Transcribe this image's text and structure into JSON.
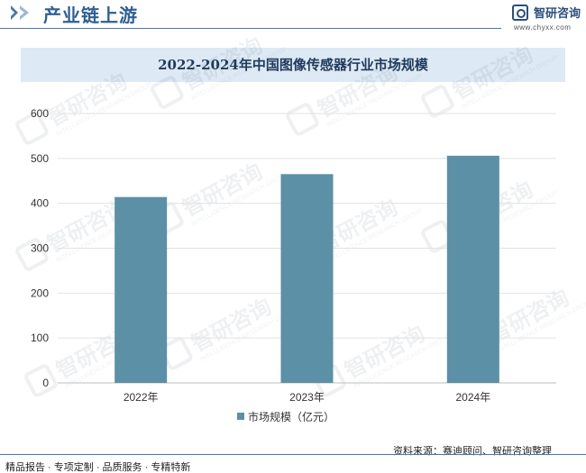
{
  "header": {
    "title": "产业链上游",
    "logo_name": "智研咨询",
    "logo_url": "www.chyxx.com",
    "accent": "#2f5f93"
  },
  "watermark": {
    "text": "智研咨询",
    "subtext": "INTELLIGENCE RESEARCH GROUP"
  },
  "chart_data": {
    "type": "bar",
    "title": "2022-2024年中国图像传感器行业市场规模",
    "categories": [
      "2022年",
      "2023年",
      "2024年"
    ],
    "series": [
      {
        "name": "市场规模（亿元）",
        "values": [
          414,
          465,
          506
        ],
        "color": "#5b90a6"
      }
    ],
    "ylim": [
      0,
      600
    ],
    "yticks": [
      0,
      100,
      200,
      300,
      400,
      500,
      600
    ],
    "grid": true,
    "legend_position": "bottom"
  },
  "footer": {
    "left": "精品报告 · 专项定制 · 品质服务 · 专精特新",
    "right": "资料来源：赛迪顾问、智研咨询整理"
  }
}
